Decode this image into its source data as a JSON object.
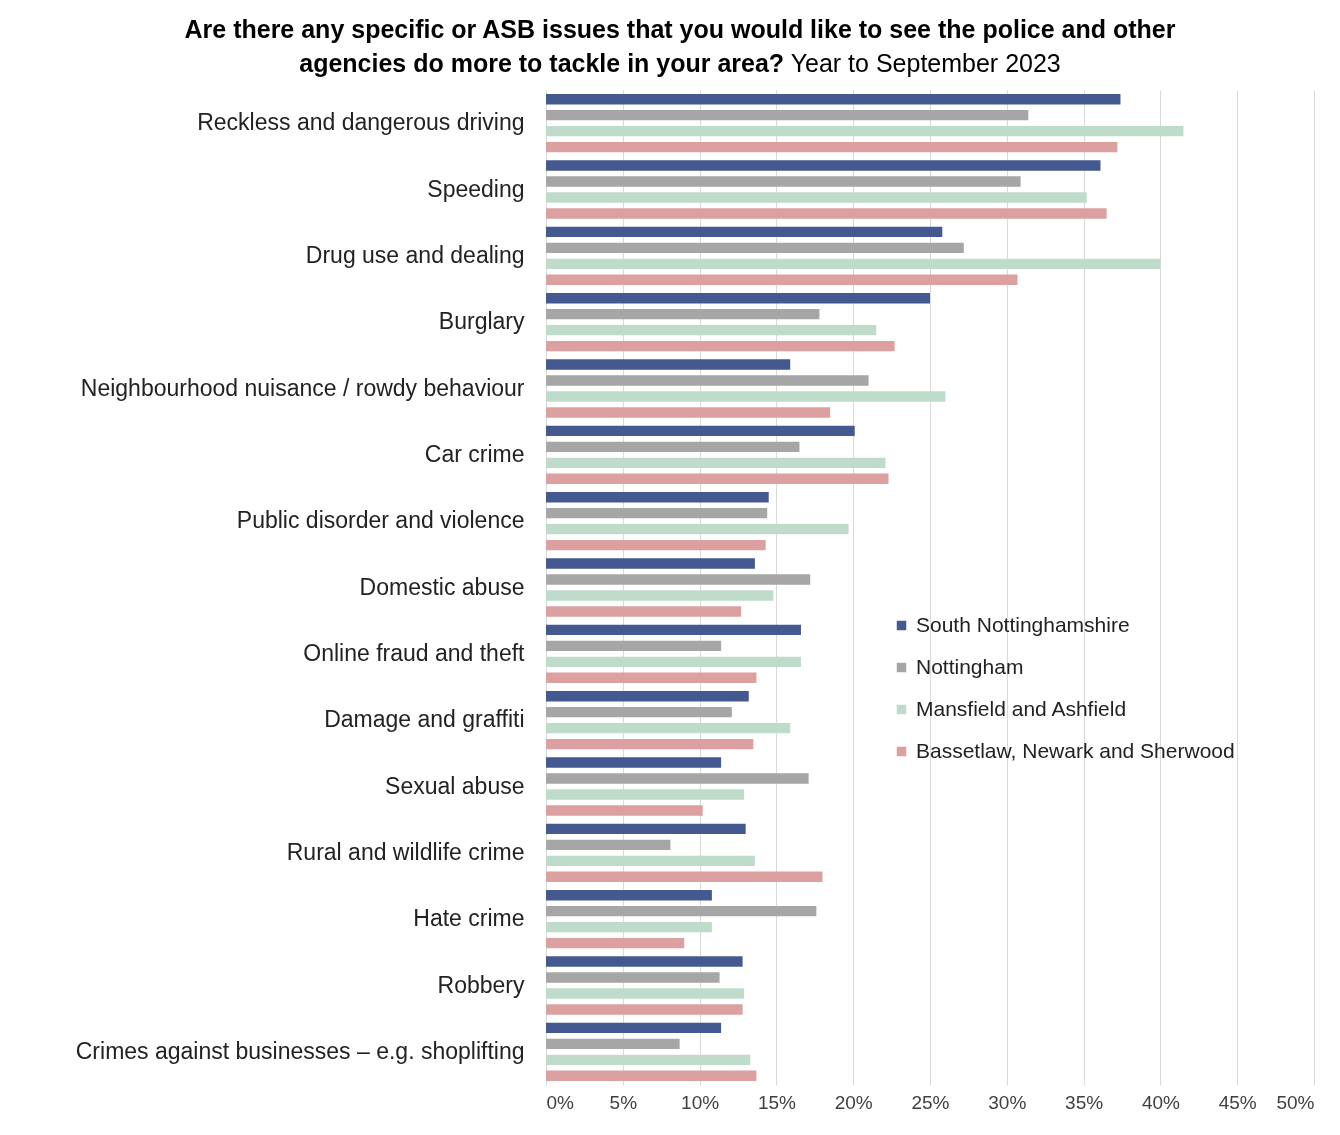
{
  "chart_data": {
    "type": "bar",
    "orientation": "horizontal",
    "title": "Are there any specific or ASB issues that you would like to see the police and other agencies do more to tackle in your area?",
    "subtitle": "Year to September 2023",
    "categories": [
      "Reckless and dangerous driving",
      "Speeding",
      "Drug use and dealing",
      "Burglary",
      "Neighbourhood nuisance / rowdy behaviour",
      "Car crime",
      "Public disorder and violence",
      "Domestic abuse",
      "Online fraud and theft",
      "Damage and graffiti",
      "Sexual abuse",
      "Rural and wildlife crime",
      "Hate crime",
      "Robbery",
      "Crimes against businesses – e.g. shoplifting"
    ],
    "series": [
      {
        "name": "South Nottinghamshire",
        "color": "#44598f",
        "values": [
          37.4,
          36.1,
          25.8,
          25.0,
          15.9,
          20.1,
          14.5,
          13.6,
          16.6,
          13.2,
          11.4,
          13.0,
          10.8,
          12.8,
          11.4
        ]
      },
      {
        "name": "Nottingham",
        "color": "#a6a6a6",
        "values": [
          31.4,
          30.9,
          27.2,
          17.8,
          21.0,
          16.5,
          14.4,
          17.2,
          11.4,
          12.1,
          17.1,
          8.1,
          17.6,
          11.3,
          8.7
        ]
      },
      {
        "name": "Mansfield and Ashfield",
        "color": "#bfdccb",
        "values": [
          41.5,
          35.2,
          40.0,
          21.5,
          26.0,
          22.1,
          19.7,
          14.8,
          16.6,
          15.9,
          12.9,
          13.6,
          10.8,
          12.9,
          13.3
        ]
      },
      {
        "name": "Bassetlaw, Newark and Sherwood",
        "color": "#dca0a0",
        "values": [
          37.2,
          36.5,
          30.7,
          22.7,
          18.5,
          22.3,
          14.3,
          12.7,
          13.7,
          13.5,
          10.2,
          18.0,
          9.0,
          12.8,
          13.7
        ]
      }
    ],
    "xlim": [
      0,
      50
    ],
    "xticks": [
      {
        "value": 0,
        "label": "0%"
      },
      {
        "value": 5,
        "label": "5%"
      },
      {
        "value": 10,
        "label": "10%"
      },
      {
        "value": 15,
        "label": "15%"
      },
      {
        "value": 20,
        "label": "20%"
      },
      {
        "value": 25,
        "label": "25%"
      },
      {
        "value": 30,
        "label": "30%"
      },
      {
        "value": 35,
        "label": "35%"
      },
      {
        "value": 40,
        "label": "40%"
      },
      {
        "value": 45,
        "label": "45%"
      },
      {
        "value": 50,
        "label": "50%"
      }
    ],
    "grid": "x",
    "legend": "right"
  }
}
